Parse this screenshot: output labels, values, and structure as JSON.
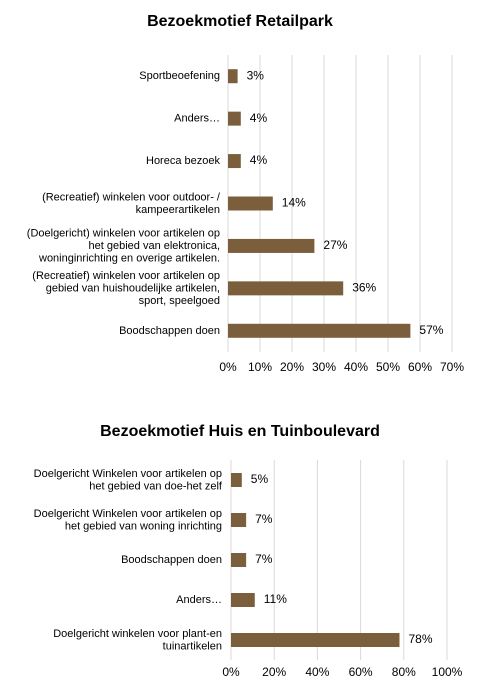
{
  "chart_data": [
    {
      "type": "barh",
      "title": "Bezoekmotief Retailpark",
      "categories": [
        "Sportbeoefening",
        "Anders…",
        "Horeca bezoek",
        "(Recreatief) winkelen voor outdoor- /\nkampeerartikelen",
        "(Doelgericht) winkelen voor artikelen op\nhet gebied van elektronica,\nwoninginrichting en overige artikelen.",
        "(Recreatief) winkelen voor artikelen op\ngebied van huishoudelijke artikelen,\nsport, speelgoed",
        "Boodschappen doen"
      ],
      "values": [
        3,
        4,
        4,
        14,
        27,
        36,
        57
      ],
      "value_labels": [
        "3%",
        "4%",
        "4%",
        "14%",
        "27%",
        "36%",
        "57%"
      ],
      "color": "#7b5e3b",
      "xlim": [
        0,
        70
      ],
      "xticks": [
        {
          "value": 0,
          "label": "0%"
        },
        {
          "value": 10,
          "label": "10%"
        },
        {
          "value": 20,
          "label": "20%"
        },
        {
          "value": 30,
          "label": "30%"
        },
        {
          "value": 40,
          "label": "40%"
        },
        {
          "value": 50,
          "label": "50%"
        },
        {
          "value": 60,
          "label": "60%"
        },
        {
          "value": 70,
          "label": "70%"
        }
      ],
      "grid": true
    },
    {
      "type": "barh",
      "title": "Bezoekmotief Huis en Tuinboulevard",
      "categories": [
        "Doelgericht Winkelen voor artikelen op\nhet gebied van doe-het zelf",
        "Doelgericht Winkelen voor artikelen op\nhet gebied van woning inrichting",
        "Boodschappen doen",
        "Anders…",
        "Doelgericht winkelen voor plant-en\ntuinartikelen"
      ],
      "values": [
        5,
        7,
        7,
        11,
        78
      ],
      "value_labels": [
        "5%",
        "7%",
        "7%",
        "11%",
        "78%"
      ],
      "color": "#7b5e3b",
      "xlim": [
        0,
        100
      ],
      "xticks": [
        {
          "value": 0,
          "label": "0%"
        },
        {
          "value": 20,
          "label": "20%"
        },
        {
          "value": 40,
          "label": "40%"
        },
        {
          "value": 60,
          "label": "60%"
        },
        {
          "value": 80,
          "label": "80%"
        },
        {
          "value": 100,
          "label": "100%"
        }
      ],
      "grid": true
    }
  ]
}
